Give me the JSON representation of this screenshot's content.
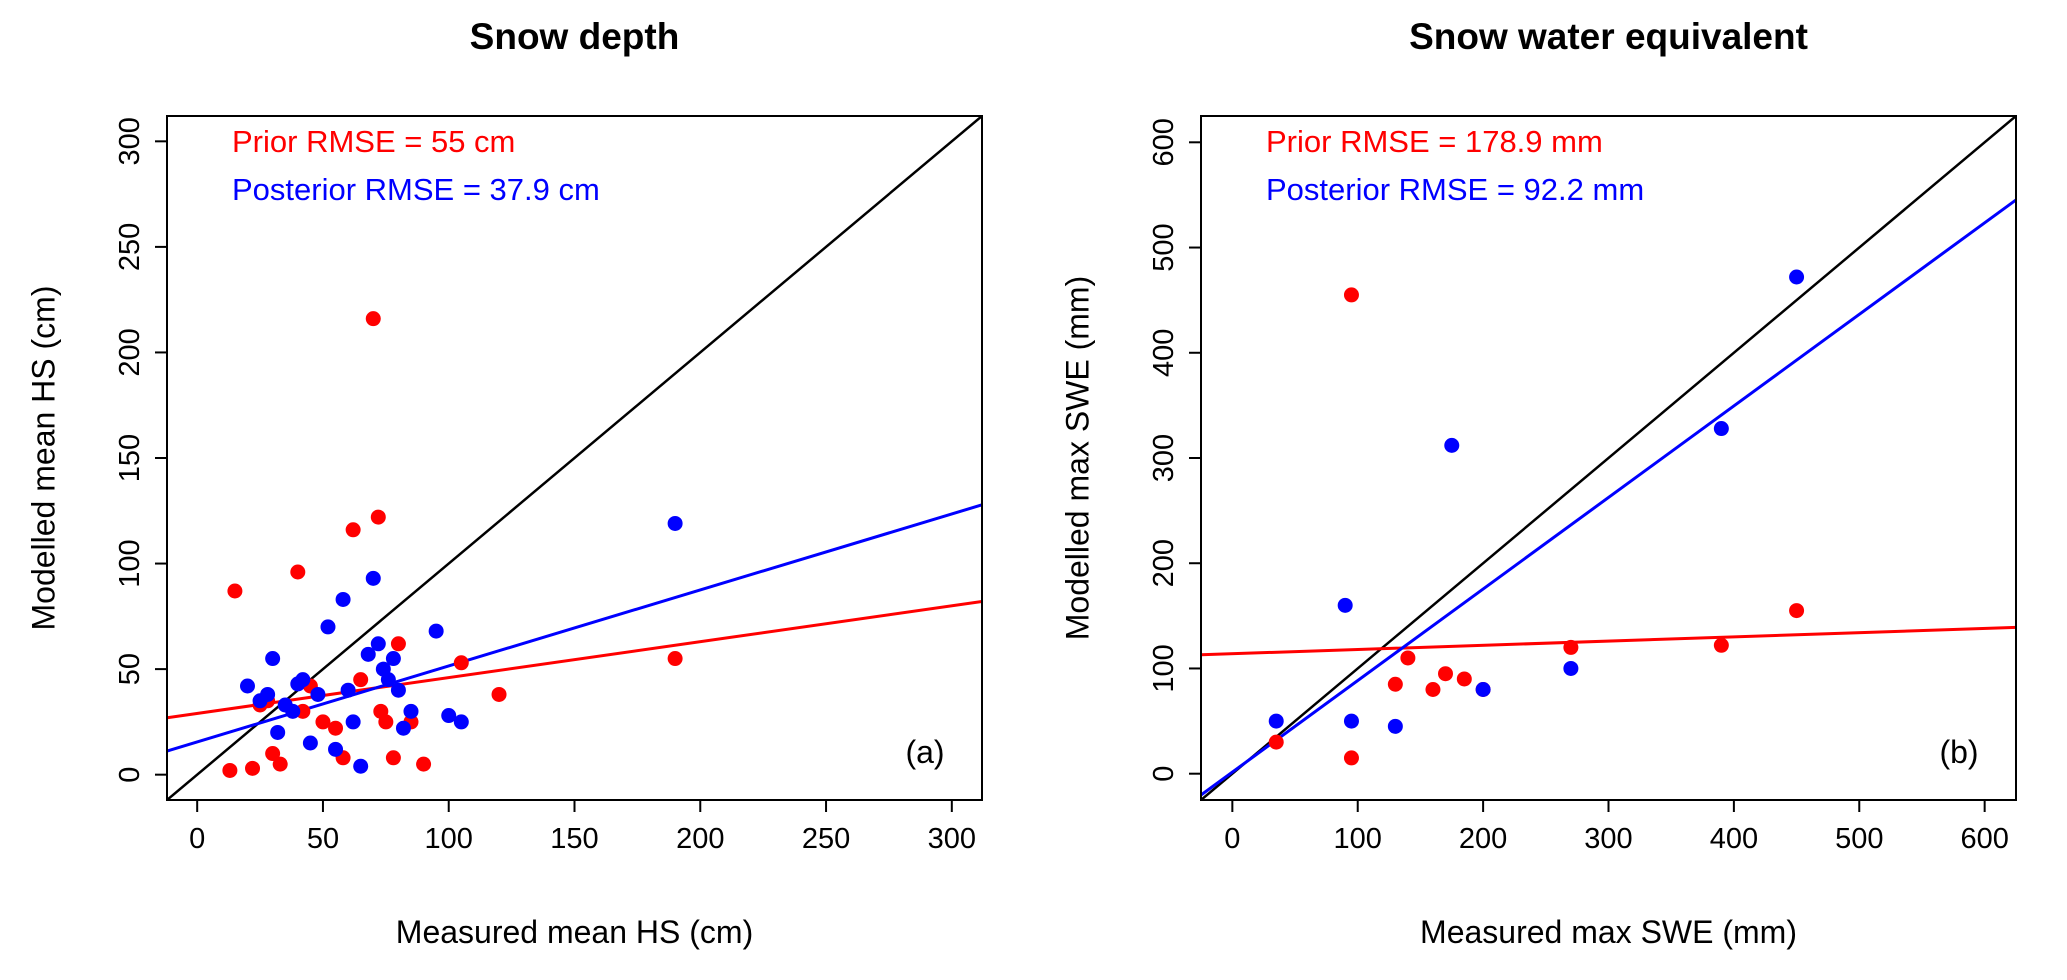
{
  "figure": {
    "background": "#ffffff",
    "colors": {
      "prior": "#ff0000",
      "posterior": "#0000ff",
      "identity": "#000000"
    }
  },
  "chart_data": [
    {
      "type": "scatter",
      "panel": "a",
      "title": "Snow depth",
      "xlabel": "Measured mean HS (cm)",
      "ylabel": "Modelled mean HS (cm)",
      "corner_label": "(a)",
      "xlim": [
        -12,
        312
      ],
      "ylim": [
        -12,
        312
      ],
      "ticks": [
        0,
        50,
        100,
        150,
        200,
        250,
        300
      ],
      "grid": false,
      "identity_line": {
        "color": "#000000"
      },
      "annotations": [
        {
          "text": "Prior RMSE = 55 cm",
          "color": "#ff0000"
        },
        {
          "text": "Posterior RMSE = 37.9 cm",
          "color": "#0000ff"
        }
      ],
      "fit_lines": [
        {
          "series": "Prior",
          "color": "#ff0000",
          "intercept": 29,
          "slope": 0.17
        },
        {
          "series": "Posterior",
          "color": "#0000ff",
          "intercept": 15.5,
          "slope": 0.36
        }
      ],
      "series": [
        {
          "name": "Prior",
          "color": "#ff0000",
          "points": [
            [
              15,
              87
            ],
            [
              13,
              2
            ],
            [
              22,
              3
            ],
            [
              25,
              33
            ],
            [
              28,
              35
            ],
            [
              30,
              10
            ],
            [
              33,
              5
            ],
            [
              40,
              96
            ],
            [
              42,
              30
            ],
            [
              45,
              42
            ],
            [
              50,
              25
            ],
            [
              55,
              22
            ],
            [
              58,
              8
            ],
            [
              62,
              116
            ],
            [
              65,
              45
            ],
            [
              70,
              216
            ],
            [
              72,
              122
            ],
            [
              73,
              30
            ],
            [
              75,
              25
            ],
            [
              78,
              8
            ],
            [
              80,
              62
            ],
            [
              85,
              25
            ],
            [
              90,
              5
            ],
            [
              105,
              53
            ],
            [
              120,
              38
            ],
            [
              190,
              55
            ]
          ]
        },
        {
          "name": "Posterior",
          "color": "#0000ff",
          "points": [
            [
              20,
              42
            ],
            [
              25,
              35
            ],
            [
              28,
              38
            ],
            [
              30,
              55
            ],
            [
              32,
              20
            ],
            [
              35,
              33
            ],
            [
              38,
              30
            ],
            [
              40,
              43
            ],
            [
              42,
              45
            ],
            [
              45,
              15
            ],
            [
              48,
              38
            ],
            [
              52,
              70
            ],
            [
              55,
              12
            ],
            [
              58,
              83
            ],
            [
              60,
              40
            ],
            [
              62,
              25
            ],
            [
              65,
              4
            ],
            [
              68,
              57
            ],
            [
              70,
              93
            ],
            [
              72,
              62
            ],
            [
              74,
              50
            ],
            [
              76,
              45
            ],
            [
              78,
              55
            ],
            [
              80,
              40
            ],
            [
              82,
              22
            ],
            [
              85,
              30
            ],
            [
              95,
              68
            ],
            [
              100,
              28
            ],
            [
              105,
              25
            ],
            [
              190,
              119
            ]
          ]
        }
      ]
    },
    {
      "type": "scatter",
      "panel": "b",
      "title": "Snow water equivalent",
      "xlabel": "Measured max SWE (mm)",
      "ylabel": "Modelled max SWE (mm)",
      "corner_label": "(b)",
      "xlim": [
        -25,
        625
      ],
      "ylim": [
        -25,
        625
      ],
      "ticks": [
        0,
        100,
        200,
        300,
        400,
        500,
        600
      ],
      "grid": false,
      "identity_line": {
        "color": "#000000"
      },
      "annotations": [
        {
          "text": "Prior RMSE = 178.9 mm",
          "color": "#ff0000"
        },
        {
          "text": "Posterior RMSE = 92.2 mm",
          "color": "#0000ff"
        }
      ],
      "fit_lines": [
        {
          "series": "Prior",
          "color": "#ff0000",
          "intercept": 114,
          "slope": 0.04
        },
        {
          "series": "Posterior",
          "color": "#0000ff",
          "intercept": 1.5,
          "slope": 0.87
        }
      ],
      "series": [
        {
          "name": "Prior",
          "color": "#ff0000",
          "points": [
            [
              35,
              30
            ],
            [
              95,
              455
            ],
            [
              95,
              15
            ],
            [
              130,
              85
            ],
            [
              140,
              110
            ],
            [
              160,
              80
            ],
            [
              170,
              95
            ],
            [
              185,
              90
            ],
            [
              200,
              80
            ],
            [
              270,
              120
            ],
            [
              390,
              122
            ],
            [
              450,
              155
            ]
          ]
        },
        {
          "name": "Posterior",
          "color": "#0000ff",
          "points": [
            [
              35,
              50
            ],
            [
              90,
              160
            ],
            [
              95,
              50
            ],
            [
              130,
              45
            ],
            [
              175,
              312
            ],
            [
              200,
              80
            ],
            [
              270,
              100
            ],
            [
              390,
              328
            ],
            [
              450,
              472
            ]
          ]
        }
      ]
    }
  ]
}
